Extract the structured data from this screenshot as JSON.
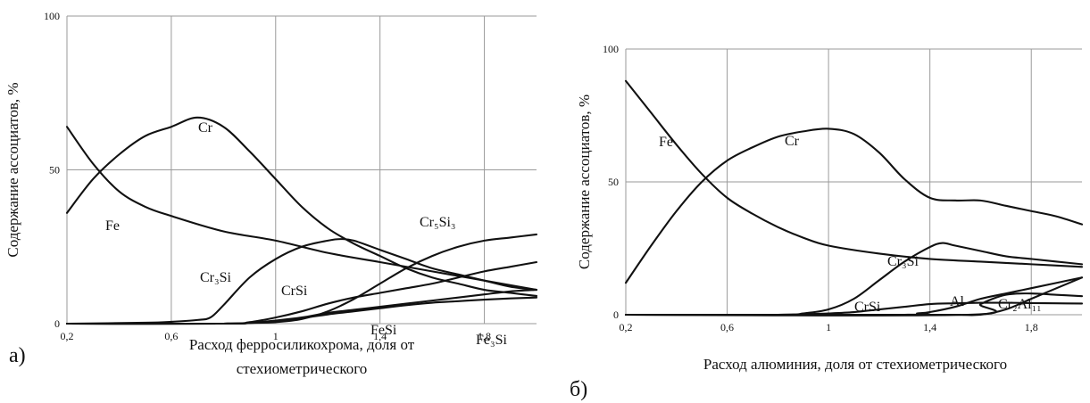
{
  "chart_data": [
    {
      "type": "line",
      "panel_label": "а)",
      "xlabel_lines": [
        "Расход ферросиликохрома, доля от",
        "стехиометрического"
      ],
      "ylabel": "Содержание ассоциатов, %",
      "xlim": [
        0.2,
        2.0
      ],
      "ylim": [
        0,
        100
      ],
      "x_ticks": [
        0.2,
        0.6,
        1.0,
        1.4,
        1.8
      ],
      "x_tick_labels": [
        "0,2",
        "0,6",
        "1",
        "1,4",
        "1,8"
      ],
      "y_ticks": [
        0,
        50,
        100
      ],
      "y_tick_labels": [
        "0",
        "50",
        "100"
      ],
      "grid": true,
      "series": [
        {
          "name": "Cr",
          "x": [
            0.2,
            0.3,
            0.4,
            0.5,
            0.6,
            0.7,
            0.8,
            0.9,
            1.0,
            1.1,
            1.2,
            1.3,
            1.4,
            1.5,
            1.6,
            1.7,
            1.8,
            1.9,
            2.0
          ],
          "y": [
            36,
            47,
            55,
            61,
            64,
            67,
            64,
            56,
            47,
            38,
            31,
            26,
            22,
            18,
            15,
            13,
            11,
            10,
            9
          ]
        },
        {
          "name": "Fe",
          "x": [
            0.2,
            0.3,
            0.4,
            0.5,
            0.6,
            0.8,
            1.0,
            1.2,
            1.4,
            1.6,
            1.8,
            2.0
          ],
          "y": [
            64,
            52,
            43,
            38,
            35,
            30,
            27,
            23,
            20,
            17,
            14,
            11
          ]
        },
        {
          "name": "Cr₃Si",
          "x": [
            0.2,
            0.5,
            0.6,
            0.7,
            0.75,
            0.8,
            0.9,
            1.0,
            1.1,
            1.2,
            1.25,
            1.3,
            1.4,
            1.5,
            1.6,
            1.7,
            1.8,
            1.9,
            2.0
          ],
          "y": [
            0,
            0.3,
            0.6,
            1.2,
            2,
            6,
            15,
            21,
            25,
            27,
            27.5,
            27,
            24,
            21,
            18,
            16,
            14,
            12,
            11
          ]
        },
        {
          "name": "Cr₅Si₃",
          "x": [
            0.2,
            0.8,
            0.9,
            1.0,
            1.1,
            1.2,
            1.3,
            1.4,
            1.5,
            1.6,
            1.7,
            1.8,
            1.9,
            2.0
          ],
          "y": [
            0,
            0,
            0.2,
            0.5,
            1.5,
            4,
            8,
            13,
            18,
            22,
            25,
            27,
            28,
            29
          ]
        },
        {
          "name": "CrSi",
          "x": [
            0.2,
            0.8,
            0.9,
            1.0,
            1.1,
            1.2,
            1.3,
            1.4,
            1.5,
            1.6,
            1.7,
            1.8,
            1.9,
            2.0
          ],
          "y": [
            0,
            0,
            0.5,
            2,
            4,
            6.5,
            8.5,
            10,
            11.5,
            13,
            15,
            17,
            18.5,
            20
          ]
        },
        {
          "name": "FeSi",
          "x": [
            0.2,
            0.8,
            0.9,
            1.0,
            1.1,
            1.2,
            1.3,
            1.4,
            1.5,
            1.6,
            1.7,
            1.8,
            1.9,
            2.0
          ],
          "y": [
            0,
            0,
            0.3,
            1,
            2,
            3.5,
            4.5,
            5.5,
            6.5,
            7.5,
            8.5,
            9.5,
            10.5,
            11
          ]
        },
        {
          "name": "Fe₃Si",
          "x": [
            0.2,
            0.8,
            0.9,
            1.0,
            1.1,
            1.2,
            1.3,
            1.4,
            1.5,
            1.6,
            1.7,
            1.8,
            1.9,
            2.0
          ],
          "y": [
            0,
            0,
            0.2,
            0.8,
            1.8,
            3,
            4,
            5,
            6,
            6.8,
            7.3,
            7.8,
            8.2,
            8.5
          ]
        }
      ]
    },
    {
      "type": "line",
      "panel_label": "б)",
      "xlabel_lines": [
        "Расход алюминия, доля от стехиометрического"
      ],
      "ylabel": "Содержание ассоциатов, %",
      "xlim": [
        0.2,
        2.0
      ],
      "ylim": [
        0,
        100
      ],
      "x_ticks": [
        0.2,
        0.6,
        1.0,
        1.4,
        1.8
      ],
      "x_tick_labels": [
        "0,2",
        "0,6",
        "1",
        "1,4",
        "1,8"
      ],
      "y_ticks": [
        0,
        50,
        100
      ],
      "y_tick_labels": [
        "0",
        "50",
        "100"
      ],
      "grid": true,
      "series": [
        {
          "name": "Cr",
          "x": [
            0.2,
            0.3,
            0.4,
            0.5,
            0.6,
            0.7,
            0.8,
            0.9,
            1.0,
            1.1,
            1.2,
            1.3,
            1.4,
            1.5,
            1.6,
            1.7,
            1.8,
            1.9,
            2.0
          ],
          "y": [
            12,
            26,
            39,
            50,
            58,
            63,
            67,
            69,
            70,
            68,
            61,
            51,
            44,
            43,
            43,
            41,
            39,
            37,
            34
          ]
        },
        {
          "name": "Fe",
          "x": [
            0.2,
            0.3,
            0.4,
            0.5,
            0.6,
            0.7,
            0.8,
            0.9,
            1.0,
            1.2,
            1.4,
            1.6,
            1.8,
            2.0
          ],
          "y": [
            88,
            76,
            64,
            53,
            44,
            38,
            33,
            29,
            26,
            23,
            21,
            20,
            19,
            18
          ]
        },
        {
          "name": "Cr₃Si",
          "x": [
            0.2,
            0.8,
            0.9,
            1.0,
            1.1,
            1.2,
            1.3,
            1.4,
            1.45,
            1.5,
            1.6,
            1.7,
            1.8,
            1.9,
            2.0
          ],
          "y": [
            0,
            0,
            0.5,
            2,
            6,
            13,
            20,
            25.5,
            27,
            26,
            24,
            22,
            21,
            20,
            19
          ]
        },
        {
          "name": "CrSi",
          "x": [
            0.2,
            0.8,
            0.9,
            1.0,
            1.1,
            1.2,
            1.3,
            1.4,
            1.5,
            1.6,
            1.7,
            1.8,
            1.9,
            2.0
          ],
          "y": [
            0,
            0,
            0.2,
            0.5,
            1,
            2,
            3,
            4,
            4.3,
            4.5,
            4.5,
            4.4,
            4.3,
            4.2
          ]
        },
        {
          "name": "Al",
          "x": [
            0.2,
            1.3,
            1.35,
            1.4,
            1.5,
            1.6,
            1.7,
            1.8,
            1.9,
            2.0
          ],
          "y": [
            0,
            0,
            0.5,
            1,
            3,
            6,
            8,
            10,
            12,
            14
          ]
        },
        {
          "name": "Cr₂Al₁₁",
          "x": [
            0.2,
            1.55,
            1.6,
            1.7,
            1.8,
            1.9,
            2.0
          ],
          "y": [
            0,
            0,
            4,
            7.5,
            8,
            7.5,
            7
          ]
        },
        {
          "name": "",
          "x": [
            0.2,
            1.4,
            1.5,
            1.6,
            1.7,
            1.8,
            1.9,
            2.0
          ],
          "y": [
            0,
            0,
            0,
            0,
            2,
            6,
            10,
            14
          ]
        }
      ]
    }
  ],
  "annotations": {
    "a": {
      "Cr": "Cr",
      "Fe": "Fe",
      "Cr3Si": "Cr₃Si",
      "CrSi": "CrSi",
      "Cr5Si3": "Cr₅Si₃",
      "FeSi": "FeSi",
      "Fe3Si": "Fe₃Si"
    },
    "b": {
      "Cr": "Cr",
      "Fe": "Fe",
      "Cr3Si": "Cr₃Si",
      "CrSi": "CrSi",
      "Al": "Al",
      "Cr2Al11": "Cr₂Al₁₁"
    }
  },
  "colors": {
    "curve": "#111111",
    "grid": "#9a9a9a",
    "background": "#ffffff"
  }
}
